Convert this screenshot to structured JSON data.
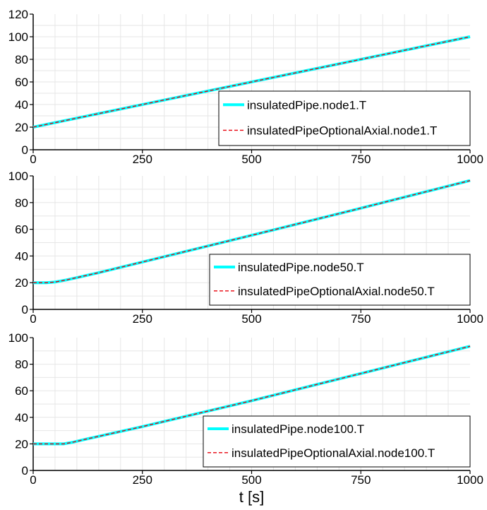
{
  "chart_data": [
    {
      "type": "line",
      "title": "",
      "xlabel": "",
      "ylabel": "",
      "xlim": [
        0,
        1000
      ],
      "ylim": [
        0,
        120
      ],
      "xticks": [
        "0",
        "250",
        "500",
        "750",
        "1000"
      ],
      "yticks": [
        "0",
        "20",
        "40",
        "60",
        "80",
        "100",
        "120"
      ],
      "grid": true,
      "legend_position": "bottom-right",
      "series": [
        {
          "name": "insulatedPipe.node1.T",
          "color": "#00ffff",
          "style": "solid",
          "x": [
            0,
            1000
          ],
          "y": [
            20,
            100
          ]
        },
        {
          "name": "insulatedPipeOptionalAxial.node1.T",
          "color": "#e8000b",
          "style": "dashed",
          "x": [
            0,
            1000
          ],
          "y": [
            20,
            100
          ]
        }
      ]
    },
    {
      "type": "line",
      "title": "",
      "xlabel": "",
      "ylabel": "",
      "xlim": [
        0,
        1000
      ],
      "ylim": [
        0,
        100
      ],
      "xticks": [
        "0",
        "250",
        "500",
        "750",
        "1000"
      ],
      "yticks": [
        "0",
        "20",
        "40",
        "60",
        "80",
        "100"
      ],
      "grid": true,
      "legend_position": "bottom-right",
      "series": [
        {
          "name": "insulatedPipe.node50.T",
          "color": "#00ffff",
          "style": "solid",
          "x": [
            0,
            30,
            50,
            75,
            100,
            150,
            250,
            500,
            750,
            1000
          ],
          "y": [
            20,
            20,
            20.5,
            22,
            23.8,
            27.5,
            35.5,
            55.5,
            75.8,
            96.5
          ]
        },
        {
          "name": "insulatedPipeOptionalAxial.node50.T",
          "color": "#e8000b",
          "style": "dashed",
          "x": [
            0,
            30,
            50,
            75,
            100,
            150,
            250,
            500,
            750,
            1000
          ],
          "y": [
            20,
            20,
            20.5,
            22,
            23.8,
            27.5,
            35.5,
            55.5,
            75.8,
            96.5
          ]
        }
      ]
    },
    {
      "type": "line",
      "title": "",
      "xlabel": "t [s]",
      "ylabel": "",
      "xlim": [
        0,
        1000
      ],
      "ylim": [
        0,
        100
      ],
      "xticks": [
        "0",
        "250",
        "500",
        "750",
        "1000"
      ],
      "yticks": [
        "0",
        "20",
        "40",
        "60",
        "80",
        "100"
      ],
      "grid": true,
      "legend_position": "bottom-right",
      "series": [
        {
          "name": "insulatedPipe.node100.T",
          "color": "#00ffff",
          "style": "solid",
          "x": [
            0,
            50,
            70,
            90,
            120,
            250,
            500,
            750,
            1000
          ],
          "y": [
            20,
            20,
            20,
            21.2,
            23.5,
            33,
            52.5,
            73,
            93.5
          ]
        },
        {
          "name": "insulatedPipeOptionalAxial.node100.T",
          "color": "#e8000b",
          "style": "dashed",
          "x": [
            0,
            50,
            70,
            90,
            120,
            250,
            500,
            750,
            1000
          ],
          "y": [
            20,
            20,
            20,
            21.2,
            23.5,
            33,
            52.5,
            73,
            93.5
          ]
        }
      ]
    }
  ]
}
